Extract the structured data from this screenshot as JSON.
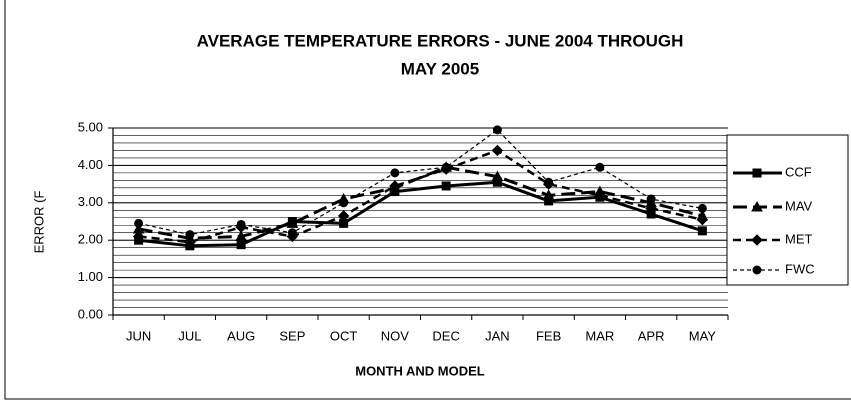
{
  "chart_data": {
    "type": "line",
    "title": "AVERAGE TEMPERATURE ERRORS - JUNE 2004 THROUGH",
    "subtitle": "MAY 2005",
    "x_label": "MONTH AND MODEL",
    "y_label": "ERROR (F",
    "categories": [
      "JUN",
      "JUL",
      "AUG",
      "SEP",
      "OCT",
      "NOV",
      "DEC",
      "JAN",
      "FEB",
      "MAR",
      "APR",
      "MAY"
    ],
    "series": [
      {
        "name": "CCF",
        "color": "#000000",
        "marker": "square",
        "line": "solid",
        "values": [
          2.0,
          1.85,
          1.88,
          2.5,
          2.45,
          3.3,
          3.45,
          3.55,
          3.05,
          3.15,
          2.7,
          2.25
        ]
      },
      {
        "name": "MAV",
        "color": "#000000",
        "marker": "triangle",
        "line": "longdash",
        "values": [
          2.3,
          2.05,
          2.1,
          2.45,
          3.1,
          3.4,
          3.95,
          3.7,
          3.2,
          3.3,
          3.0,
          2.65
        ]
      },
      {
        "name": "MET",
        "color": "#000000",
        "marker": "diamond",
        "line": "dash",
        "values": [
          2.1,
          1.95,
          2.35,
          2.1,
          2.65,
          3.45,
          3.9,
          4.4,
          3.5,
          3.2,
          2.85,
          2.55
        ]
      },
      {
        "name": "FWC",
        "color": "#000000",
        "marker": "circle",
        "line": "dotdash",
        "values": [
          2.45,
          2.15,
          2.42,
          2.2,
          3.0,
          3.8,
          3.95,
          4.95,
          3.55,
          3.95,
          3.1,
          2.85
        ]
      }
    ],
    "ylim": [
      0,
      5
    ],
    "yticks": [
      {
        "value": 0,
        "label": "0.00"
      },
      {
        "value": 1,
        "label": "1.00"
      },
      {
        "value": 2,
        "label": "2.00"
      },
      {
        "value": 3,
        "label": "3.00"
      },
      {
        "value": 4,
        "label": "4.00"
      },
      {
        "value": 5,
        "label": "5.00"
      }
    ],
    "grid": true,
    "minor_grid": 0.2,
    "legend": "right"
  }
}
